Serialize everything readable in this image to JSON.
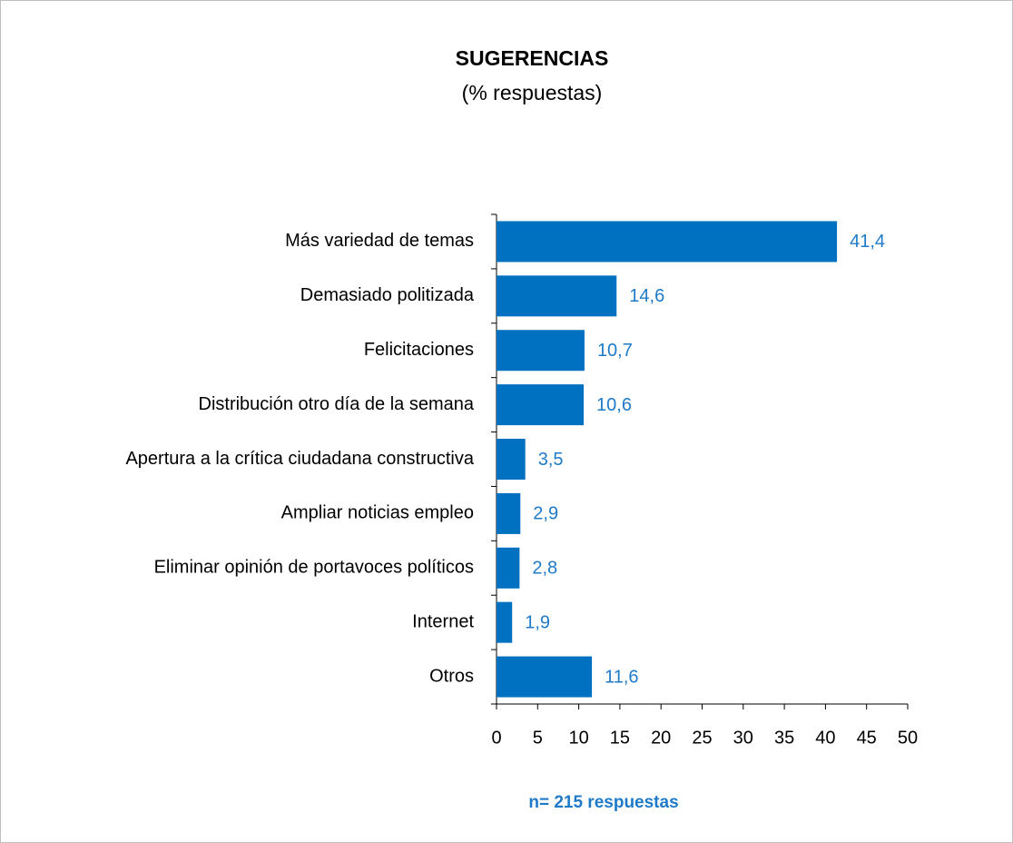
{
  "chart_data": {
    "type": "bar",
    "orientation": "horizontal",
    "title": "SUGERENCIAS",
    "subtitle": "(%  respuestas)",
    "footnote": "n= 215 respuestas",
    "categories": [
      "Más variedad de temas",
      "Demasiado politizada",
      "Felicitaciones",
      "Distribución otro día de la semana",
      "Apertura a la crítica ciudadana constructiva",
      "Ampliar noticias empleo",
      "Eliminar opinión de portavoces políticos",
      "Internet",
      "Otros"
    ],
    "values": [
      41.4,
      14.6,
      10.7,
      10.6,
      3.5,
      2.9,
      2.8,
      1.9,
      11.6
    ],
    "value_labels": [
      "41,4",
      "14,6",
      "10,7",
      "10,6",
      "3,5",
      "2,9",
      "2,8",
      "1,9",
      "11,6"
    ],
    "color": "#0070c0",
    "label_color": "#1f7ac8",
    "xlim": [
      0,
      50
    ],
    "xticks": [
      0,
      5,
      10,
      15,
      20,
      25,
      30,
      35,
      40,
      45,
      50
    ],
    "grid": false
  }
}
